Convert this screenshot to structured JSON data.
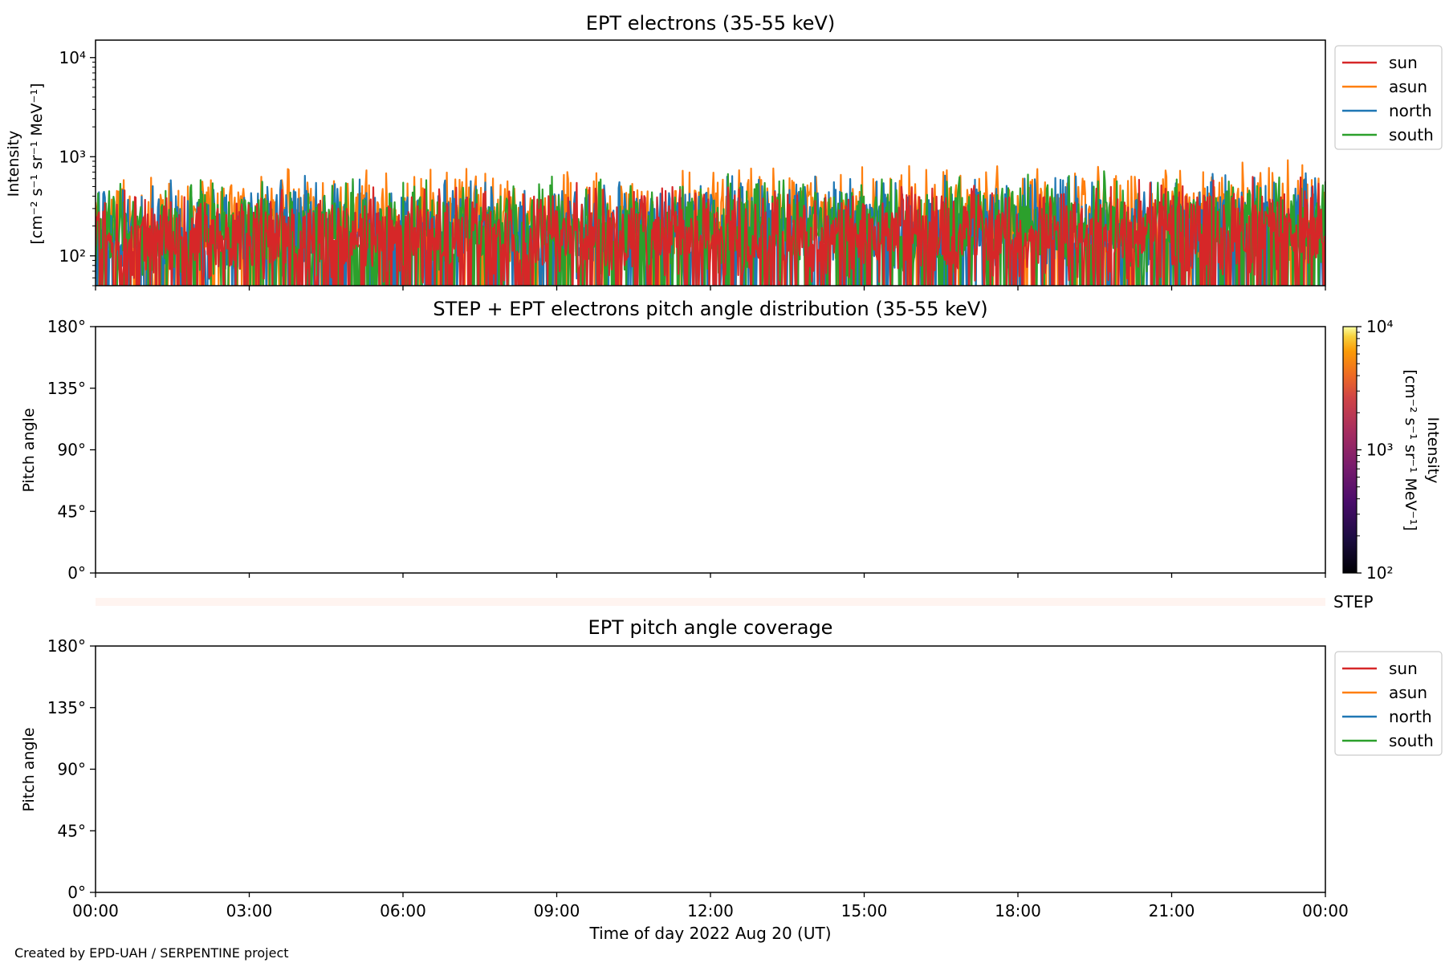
{
  "footer": "Created by EPD-UAH / SERPENTINE project",
  "colors": {
    "sun": "#d62728",
    "asun": "#ff7f0e",
    "north": "#1f77b4",
    "south": "#2ca02c"
  },
  "chart_data": [
    {
      "type": "line",
      "title": "EPT electrons (35-55 keV)",
      "ylabel_lines": [
        "Intensity",
        "[cm⁻² s⁻¹ sr⁻¹ MeV⁻¹]"
      ],
      "yscale": "log",
      "ylim": [
        50,
        15000
      ],
      "yticks": [
        {
          "value": 100,
          "label": "10²"
        },
        {
          "value": 1000,
          "label": "10³"
        },
        {
          "value": 10000,
          "label": "10⁴"
        }
      ],
      "xlim": [
        0,
        24
      ],
      "legend_position": "outside-right-top",
      "series": [
        {
          "name": "sun",
          "color": "#d62728",
          "median": 150,
          "peak": 700
        },
        {
          "name": "asun",
          "color": "#ff7f0e",
          "median": 220,
          "peak": 1050
        },
        {
          "name": "north",
          "color": "#1f77b4",
          "median": 180,
          "peak": 720
        },
        {
          "name": "south",
          "color": "#2ca02c",
          "median": 180,
          "peak": 950
        }
      ]
    },
    {
      "type": "heatmap",
      "title": "STEP + EPT electrons pitch angle distribution (35-55 keV)",
      "ylabel": "Pitch angle",
      "ylim": [
        0,
        180
      ],
      "yticks": [
        "0°",
        "45°",
        "90°",
        "135°",
        "180°"
      ],
      "xlim": [
        0,
        24
      ],
      "values": [],
      "step_label": "STEP",
      "colorbar": {
        "label": "Intensity",
        "units": "[cm⁻² s⁻¹ sr⁻¹ MeV⁻¹]",
        "scale": "log",
        "range": [
          100,
          10000
        ],
        "ticks": [
          "10²",
          "10³",
          "10⁴"
        ],
        "colormap": "inferno"
      }
    },
    {
      "type": "line",
      "title": "EPT pitch angle coverage",
      "ylabel": "Pitch angle",
      "ylim": [
        0,
        180
      ],
      "yticks": [
        "0°",
        "45°",
        "90°",
        "135°",
        "180°"
      ],
      "xlim": [
        0,
        24
      ],
      "xticks": [
        "00:00",
        "03:00",
        "06:00",
        "09:00",
        "12:00",
        "15:00",
        "18:00",
        "21:00",
        "00:00"
      ],
      "xlabel": "Time of day 2022 Aug 20 (UT)",
      "legend_position": "outside-right-top",
      "series": [
        {
          "name": "sun",
          "color": "#d62728",
          "values": []
        },
        {
          "name": "asun",
          "color": "#ff7f0e",
          "values": []
        },
        {
          "name": "north",
          "color": "#1f77b4",
          "values": []
        },
        {
          "name": "south",
          "color": "#2ca02c",
          "values": []
        }
      ]
    }
  ]
}
